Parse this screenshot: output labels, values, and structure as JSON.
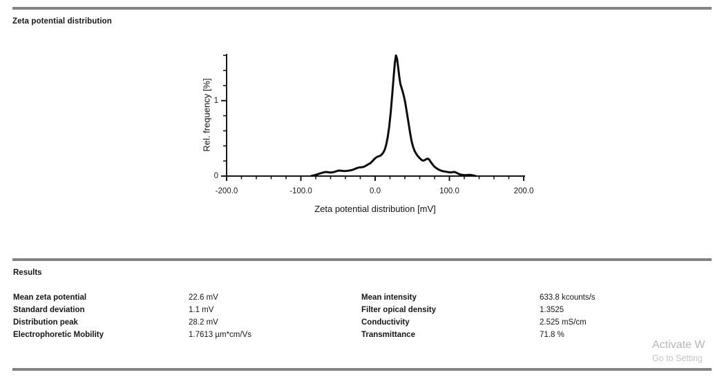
{
  "page": {
    "title": "Zeta potential distribution",
    "watermark": {
      "line1": "Activate W",
      "line2": "Go to Setting"
    }
  },
  "chart_data": {
    "type": "line",
    "title": "",
    "xlabel": "Zeta potential distribution [mV]",
    "ylabel": "Rel. frequency [%]",
    "xlim": [
      -200,
      200
    ],
    "ylim": [
      0,
      1.62
    ],
    "grid": false,
    "legend": null,
    "line_color": "#0c0c0c",
    "axis_color": "#161616",
    "x_major_ticks": [
      -200,
      -100,
      0,
      100,
      200
    ],
    "x_major_tick_labels": [
      "-200.0",
      "-100.0",
      "0.0",
      "100.0",
      "200.0"
    ],
    "x_minor_tick_step": 20,
    "y_major_ticks": [
      0,
      1
    ],
    "y_major_tick_labels": [
      "0",
      "1"
    ],
    "y_minor_tick_step": 0.2,
    "series": [
      {
        "name": "Rel. frequency",
        "points": [
          [
            -86,
            0.003
          ],
          [
            -82,
            0.01
          ],
          [
            -78,
            0.022
          ],
          [
            -74,
            0.035
          ],
          [
            -70,
            0.048
          ],
          [
            -66,
            0.055
          ],
          [
            -63,
            0.05
          ],
          [
            -60,
            0.047
          ],
          [
            -56,
            0.052
          ],
          [
            -52,
            0.065
          ],
          [
            -49,
            0.073
          ],
          [
            -46,
            0.071
          ],
          [
            -42,
            0.067
          ],
          [
            -38,
            0.069
          ],
          [
            -34,
            0.074
          ],
          [
            -30,
            0.083
          ],
          [
            -27,
            0.096
          ],
          [
            -24,
            0.108
          ],
          [
            -21,
            0.115
          ],
          [
            -18,
            0.117
          ],
          [
            -15,
            0.124
          ],
          [
            -12,
            0.14
          ],
          [
            -9,
            0.157
          ],
          [
            -6,
            0.175
          ],
          [
            -3,
            0.205
          ],
          [
            -1,
            0.227
          ],
          [
            1,
            0.243
          ],
          [
            3,
            0.256
          ],
          [
            5,
            0.263
          ],
          [
            7,
            0.27
          ],
          [
            9,
            0.287
          ],
          [
            11,
            0.312
          ],
          [
            13,
            0.352
          ],
          [
            15,
            0.42
          ],
          [
            17,
            0.52
          ],
          [
            19,
            0.66
          ],
          [
            21,
            0.85
          ],
          [
            23,
            1.08
          ],
          [
            25,
            1.33
          ],
          [
            26.5,
            1.5
          ],
          [
            28,
            1.6
          ],
          [
            29.5,
            1.555
          ],
          [
            31,
            1.44
          ],
          [
            32.5,
            1.32
          ],
          [
            34,
            1.22
          ],
          [
            35.5,
            1.17
          ],
          [
            37,
            1.12
          ],
          [
            38.5,
            1.065
          ],
          [
            40,
            1.0
          ],
          [
            41.5,
            0.915
          ],
          [
            43,
            0.825
          ],
          [
            45,
            0.7
          ],
          [
            47,
            0.575
          ],
          [
            49,
            0.465
          ],
          [
            51,
            0.39
          ],
          [
            53,
            0.335
          ],
          [
            55,
            0.3
          ],
          [
            57,
            0.27
          ],
          [
            59,
            0.248
          ],
          [
            61,
            0.228
          ],
          [
            63,
            0.21
          ],
          [
            65,
            0.205
          ],
          [
            67,
            0.212
          ],
          [
            69,
            0.226
          ],
          [
            71,
            0.232
          ],
          [
            73,
            0.215
          ],
          [
            75,
            0.185
          ],
          [
            77,
            0.158
          ],
          [
            79,
            0.133
          ],
          [
            81,
            0.114
          ],
          [
            84,
            0.094
          ],
          [
            87,
            0.079
          ],
          [
            90,
            0.068
          ],
          [
            93,
            0.061
          ],
          [
            96,
            0.057
          ],
          [
            99,
            0.051
          ],
          [
            102,
            0.048
          ],
          [
            104,
            0.051
          ],
          [
            106,
            0.055
          ],
          [
            108,
            0.051
          ],
          [
            110,
            0.041
          ],
          [
            112,
            0.031
          ],
          [
            114,
            0.023
          ],
          [
            117,
            0.016
          ],
          [
            120,
            0.013
          ],
          [
            123,
            0.013
          ],
          [
            126,
            0.016
          ],
          [
            129,
            0.015
          ],
          [
            131,
            0.011
          ],
          [
            133,
            0.006
          ],
          [
            135,
            0.002
          ]
        ]
      }
    ]
  },
  "results": {
    "heading": "Results",
    "left": [
      {
        "label": "Mean zeta potential",
        "value": "22.6 mV"
      },
      {
        "label": "Standard deviation",
        "value": "1.1 mV"
      },
      {
        "label": "Distribution peak",
        "value": "28.2 mV"
      },
      {
        "label": "Electrophoretic Mobility",
        "value": "1.7613 µm*cm/Vs"
      }
    ],
    "right": [
      {
        "label": "Mean intensity",
        "value": "633.8 kcounts/s"
      },
      {
        "label": "Filter opical density",
        "value": "1.3525"
      },
      {
        "label": "Conductivity",
        "value": "2.525 mS/cm"
      },
      {
        "label": "Transmittance",
        "value": "71.8 %"
      }
    ]
  }
}
